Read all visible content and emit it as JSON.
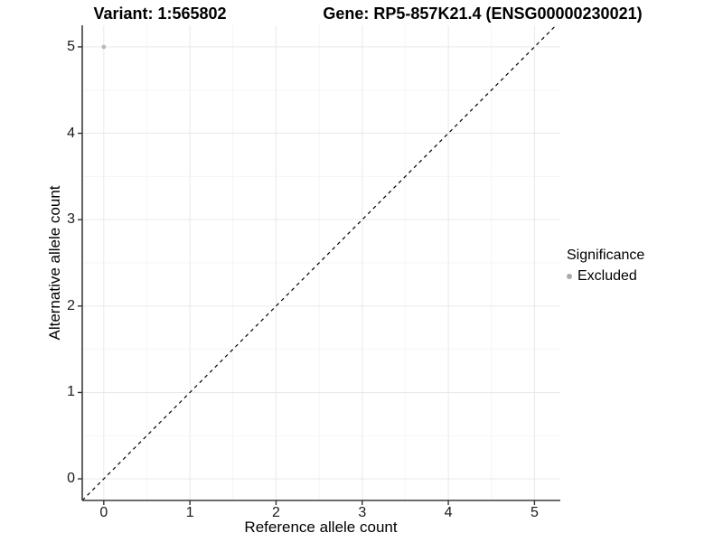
{
  "figure": {
    "background": "#ffffff",
    "kind": "scatter-plot"
  },
  "colors": {
    "point": "#b9b9b9",
    "legend_swatch": "#aaaaaa",
    "grid_major": "#e9e9e9",
    "grid_minor": "#f5f5f5",
    "axis_line": "#3c3c3c",
    "tick_mark": "#333333",
    "dashed_line": "#000000",
    "text": "#000000"
  },
  "chart_data": {
    "type": "scatter",
    "titles": {
      "variant": "Variant: 1:565802",
      "gene": "Gene: RP5-857K21.4 (ENSG00000230021)"
    },
    "xlabel": "Reference allele count",
    "ylabel": "Alternative allele count",
    "xlim": [
      -0.25,
      5.3
    ],
    "ylim": [
      -0.25,
      5.25
    ],
    "x_ticks": [
      0,
      1,
      2,
      3,
      4,
      5
    ],
    "y_ticks": [
      0,
      1,
      2,
      3,
      4,
      5
    ],
    "x_minor_ticks": [
      0.5,
      1.5,
      2.5,
      3.5,
      4.5
    ],
    "y_minor_ticks": [
      0.5,
      1.5,
      2.5,
      3.5,
      4.5
    ],
    "grid": "major-and-minor",
    "identity_line": {
      "style": "dashed",
      "x1": -0.25,
      "y1": -0.25,
      "x2": 5.25,
      "y2": 5.25
    },
    "series": [
      {
        "name": "Excluded",
        "color": "#b9b9b9",
        "marker": "circle",
        "points": [
          [
            0,
            5
          ]
        ]
      }
    ],
    "legend": {
      "title": "Significance",
      "position": "right",
      "entries": [
        {
          "label": "Excluded",
          "color": "#aaaaaa"
        }
      ]
    }
  }
}
